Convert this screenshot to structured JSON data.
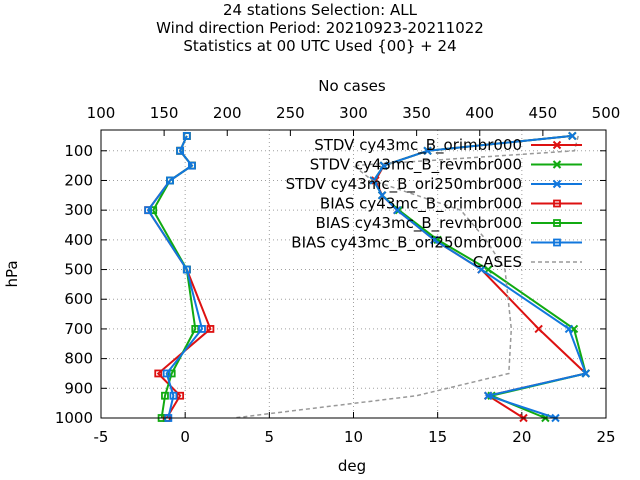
{
  "titles": [
    "24 stations Selection: ALL",
    "Wind direction  Period: 20210923-20211022",
    "Statistics at 00 UTC  Used {00} + 24"
  ],
  "chart_data": {
    "type": "line",
    "x_label": "deg",
    "y_label": "hPa",
    "x2_label": "No cases",
    "xlim": [
      -5,
      25
    ],
    "ylim": [
      1000,
      30
    ],
    "x2lim": [
      100,
      500
    ],
    "x_ticks": [
      "-5",
      "0",
      "5",
      "10",
      "15",
      "20",
      "25"
    ],
    "y_ticks": [
      "100",
      "200",
      "300",
      "400",
      "500",
      "600",
      "700",
      "800",
      "900",
      "1000"
    ],
    "x2_ticks": [
      "100",
      "150",
      "200",
      "250",
      "300",
      "350",
      "400",
      "450",
      "500"
    ],
    "grid": true,
    "legend_position": "top-right",
    "levels": [
      50,
      100,
      150,
      200,
      250,
      300,
      400,
      500,
      700,
      850,
      925,
      1000
    ],
    "series": [
      {
        "name": "STDV cy43mc_B_orimbr000",
        "axis": "x",
        "color": "#dd1111",
        "marker": "x",
        "values": [
          23.0,
          14.4,
          11.8,
          11.3,
          11.7,
          12.6,
          14.8,
          17.6,
          21.0,
          23.8,
          18.0,
          20.1
        ]
      },
      {
        "name": "STDV cy43mc_B_revmbr000",
        "axis": "x",
        "color": "#11aa11",
        "marker": "x",
        "values": [
          23.0,
          14.4,
          11.8,
          11.2,
          11.7,
          12.7,
          15.0,
          18.0,
          23.1,
          23.8,
          18.2,
          21.4
        ]
      },
      {
        "name": "STDV cy43mc_B_ori250mbr000",
        "axis": "x",
        "color": "#1177dd",
        "marker": "x",
        "values": [
          23.0,
          14.4,
          11.8,
          11.2,
          11.7,
          12.6,
          14.8,
          17.6,
          22.8,
          23.8,
          18.0,
          22.0
        ]
      },
      {
        "name": "BIAS cy43mc_B_orimbr000",
        "axis": "x",
        "color": "#dd1111",
        "marker": "square",
        "values": [
          0.1,
          -0.3,
          0.4,
          -0.9,
          null,
          -2.2,
          null,
          0.1,
          1.5,
          -1.6,
          -0.3,
          -1.1
        ]
      },
      {
        "name": "BIAS cy43mc_B_revmbr000",
        "axis": "x",
        "color": "#11aa11",
        "marker": "square",
        "values": [
          0.1,
          -0.3,
          0.4,
          -0.9,
          null,
          -1.9,
          null,
          0.1,
          0.6,
          -0.8,
          -1.2,
          -1.4
        ]
      },
      {
        "name": "BIAS cy43mc_B_ori250mbr000",
        "axis": "x",
        "color": "#1177dd",
        "marker": "square",
        "values": [
          0.1,
          -0.3,
          0.4,
          -0.9,
          null,
          -2.2,
          null,
          0.1,
          1.0,
          -1.1,
          -0.7,
          -1.0
        ]
      },
      {
        "name": "CASES",
        "axis": "x2",
        "color": "#999999",
        "marker": "none",
        "dashed": true,
        "values": [
          478,
          475,
          300,
          315,
          350,
          385,
          405,
          420,
          425,
          423,
          350,
          205
        ]
      }
    ]
  }
}
